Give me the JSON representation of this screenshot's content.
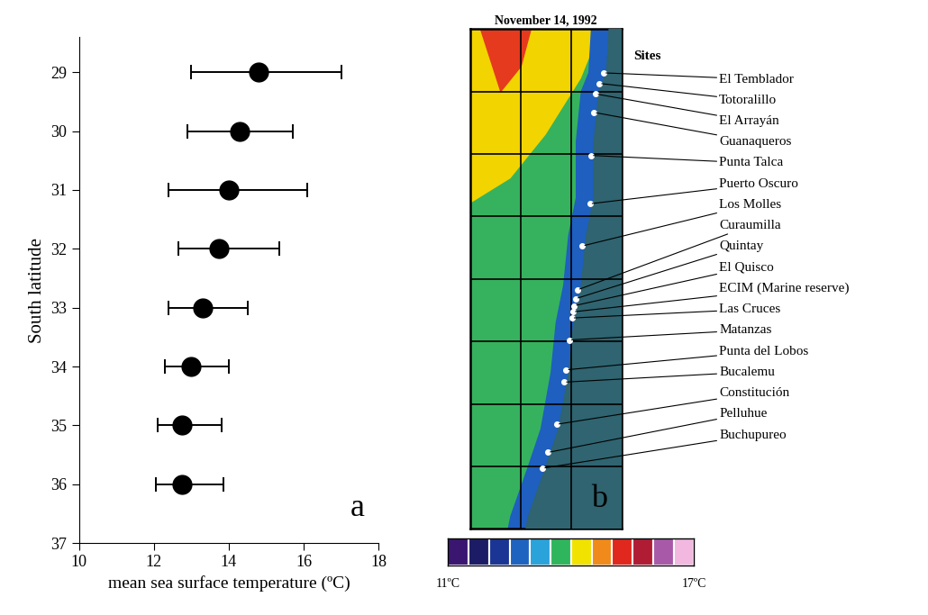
{
  "chart_data": [
    {
      "type": "scatter",
      "panel_label": "a",
      "x_label": "mean sea surface temperature (ºC)",
      "y_label": "South latitude",
      "x": [
        14.8,
        14.3,
        14.0,
        13.75,
        13.3,
        13.0,
        12.75,
        12.75
      ],
      "y": [
        29,
        30,
        31,
        32,
        33,
        34,
        35,
        36
      ],
      "error_low": [
        13.0,
        12.9,
        12.4,
        12.65,
        12.4,
        12.3,
        12.1,
        12.05
      ],
      "error_high": [
        17.0,
        15.7,
        16.1,
        15.35,
        14.5,
        14.0,
        13.8,
        13.85
      ],
      "color": "#000000",
      "marker": "o",
      "xlim": [
        10,
        18
      ],
      "xticks": [
        10,
        12,
        14,
        16,
        18
      ],
      "ylim": [
        37,
        28.4
      ],
      "yticks": [
        29,
        30,
        31,
        32,
        33,
        34,
        35,
        36,
        37
      ]
    },
    {
      "type": "map",
      "title": "November 14, 1992",
      "panel_label": "b",
      "legend_title": "Sites",
      "sites": [
        "El Temblador",
        "Totoralillo",
        "El Arrayán",
        "Guanaqueros",
        "Punta Talca",
        "Puerto Oscuro",
        "Los Molles",
        "Curaumilla",
        "Quintay",
        "El Quisco",
        "ECIM (Marine reserve)",
        "Las Cruces",
        "Matanzas",
        "Punta del Lobos",
        "Bucalemu",
        "Constitución",
        "Pelluhue",
        "Buchupureo"
      ],
      "grid": true,
      "colorbar": {
        "colors": [
          "#3a1670",
          "#1c1c66",
          "#1a3594",
          "#1f63c0",
          "#2aa3da",
          "#2fb65c",
          "#f2e200",
          "#f08a1a",
          "#e0281e",
          "#b01c34",
          "#a85aa8",
          "#f2b8e0"
        ],
        "range": [
          11,
          17
        ],
        "ticks": [
          {
            "value": 11,
            "label": "11ºC"
          },
          {
            "value": 17,
            "label": "17ºC"
          }
        ]
      }
    }
  ]
}
